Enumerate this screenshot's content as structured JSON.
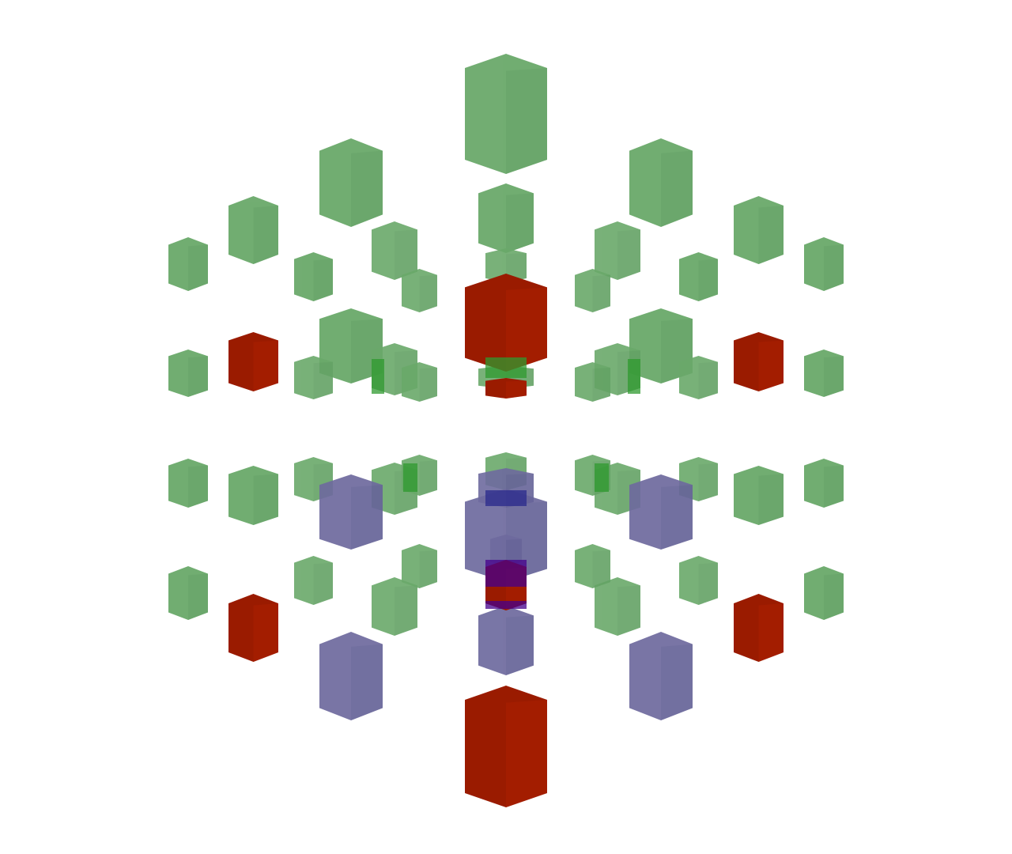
{
  "scene": {
    "background": "#ffffff",
    "colors": {
      "green": "#6aa96a",
      "green_dark": "#5a985c",
      "green_overlap": "#2f9a2f",
      "red": "#9a1b00",
      "red_top": "#b52200",
      "blue": "#6e6a9e",
      "blue_dark": "#5c5890",
      "blue_overlap": "#2a2a8c",
      "purple_overlap": "#45008c"
    },
    "cube_groups": [
      {
        "name": "top-central-column",
        "color": "green",
        "count": 4
      },
      {
        "name": "upper-ring",
        "color": "green",
        "count": 10
      },
      {
        "name": "middle-ring",
        "color": "green",
        "count": 16
      },
      {
        "name": "lower-ring",
        "color": "green",
        "count": 12
      },
      {
        "name": "red-cubes",
        "color": "red",
        "count": 8
      },
      {
        "name": "blue-cubes",
        "color": "blue",
        "count": 6
      }
    ]
  }
}
